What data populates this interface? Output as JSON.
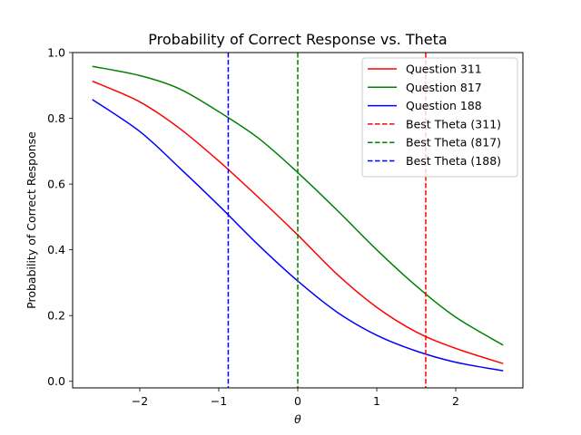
{
  "chart_data": {
    "type": "line",
    "title": "Probability of Correct Response vs. Theta",
    "xlabel": "θ",
    "ylabel": "Probability of Correct Response",
    "xlim": [
      -2.85,
      2.85
    ],
    "ylim": [
      -0.02,
      1.0
    ],
    "xticks": [
      -2,
      -1,
      0,
      1,
      2
    ],
    "xtick_labels": [
      "−2",
      "−1",
      "0",
      "1",
      "2"
    ],
    "yticks": [
      0.0,
      0.2,
      0.4,
      0.6,
      0.8,
      1.0
    ],
    "ytick_labels": [
      "0.0",
      "0.2",
      "0.4",
      "0.6",
      "0.8",
      "1.0"
    ],
    "grid": false,
    "legend_position": "top-right",
    "series": [
      {
        "name": "Question 311",
        "color": "#ff0000",
        "style": "solid",
        "x": [
          -2.6,
          -2.0,
          -1.5,
          -1.0,
          -0.5,
          0.0,
          0.5,
          1.0,
          1.5,
          2.0,
          2.6
        ],
        "y": [
          0.913,
          0.85,
          0.77,
          0.67,
          0.56,
          0.445,
          0.325,
          0.225,
          0.15,
          0.1,
          0.054
        ]
      },
      {
        "name": "Question 817",
        "color": "#008000",
        "style": "solid",
        "x": [
          -2.6,
          -2.0,
          -1.5,
          -1.0,
          -0.5,
          0.0,
          0.5,
          1.0,
          1.5,
          2.0,
          2.6
        ],
        "y": [
          0.958,
          0.93,
          0.89,
          0.82,
          0.74,
          0.635,
          0.52,
          0.4,
          0.29,
          0.195,
          0.11
        ]
      },
      {
        "name": "Question 188",
        "color": "#0000ff",
        "style": "solid",
        "x": [
          -2.6,
          -2.0,
          -1.5,
          -1.0,
          -0.5,
          0.0,
          0.5,
          1.0,
          1.5,
          2.0,
          2.6
        ],
        "y": [
          0.857,
          0.76,
          0.65,
          0.535,
          0.415,
          0.305,
          0.21,
          0.14,
          0.092,
          0.058,
          0.032
        ]
      }
    ],
    "vlines": [
      {
        "name": "Best Theta (311)",
        "color": "#ff0000",
        "style": "dashed",
        "x": 1.62
      },
      {
        "name": "Best Theta (817)",
        "color": "#008000",
        "style": "dashed",
        "x": 0.0
      },
      {
        "name": "Best Theta (188)",
        "color": "#0000ff",
        "style": "dashed",
        "x": -0.88
      }
    ]
  }
}
